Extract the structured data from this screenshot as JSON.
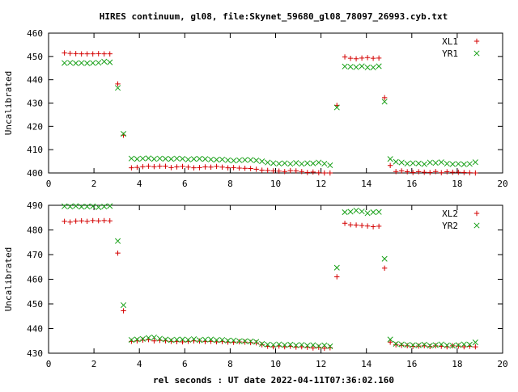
{
  "title": "HIRES continuum, gl08, file:Skynet_59680_gl08_78097_26993.cyb.txt",
  "xlabel": "rel seconds : UT date 2022-04-11T07:36:02.160",
  "colors": {
    "plus": "#d40000",
    "cross": "#18a018"
  },
  "chart_data": [
    {
      "type": "scatter",
      "ylabel": "Uncalibrated",
      "xlim": [
        0,
        20
      ],
      "ylim": [
        400,
        460
      ],
      "xticks": [
        0,
        2,
        4,
        6,
        8,
        10,
        12,
        14,
        16,
        18,
        20
      ],
      "yticks": [
        400,
        410,
        420,
        430,
        440,
        450,
        460
      ],
      "legend": "top-right",
      "series": [
        {
          "name": "XL1",
          "marker": "plus",
          "x": [
            0.7,
            0.95,
            1.2,
            1.45,
            1.7,
            1.95,
            2.2,
            2.45,
            2.7,
            3.05,
            3.3,
            3.65,
            3.9,
            4.15,
            4.4,
            4.65,
            4.9,
            5.15,
            5.4,
            5.65,
            5.9,
            6.15,
            6.4,
            6.65,
            6.9,
            7.15,
            7.4,
            7.65,
            7.9,
            8.15,
            8.4,
            8.65,
            8.9,
            9.15,
            9.4,
            9.65,
            9.9,
            10.15,
            10.4,
            10.65,
            10.9,
            11.15,
            11.4,
            11.65,
            11.9,
            12.15,
            12.4,
            12.7,
            13.05,
            13.3,
            13.55,
            13.8,
            14.05,
            14.3,
            14.55,
            14.8,
            15.05,
            15.3,
            15.55,
            15.8,
            16.05,
            16.3,
            16.55,
            16.8,
            17.05,
            17.3,
            17.55,
            17.8,
            18.05,
            18.3,
            18.55,
            18.8
          ],
          "y": [
            451.5,
            451.3,
            451.2,
            451.1,
            451.1,
            451.1,
            451.2,
            451.1,
            451.1,
            438.2,
            416.2,
            402.2,
            402.4,
            402.7,
            402.9,
            402.7,
            402.9,
            402.9,
            402.3,
            402.6,
            402.8,
            402.5,
            402.2,
            402.3,
            402.6,
            402.5,
            402.8,
            402.5,
            402.2,
            402.3,
            402.1,
            402.0,
            401.9,
            401.6,
            401.2,
            401.1,
            400.9,
            400.8,
            400.6,
            401.0,
            400.9,
            400.6,
            400.2,
            400.4,
            400.1,
            400.0,
            400.0,
            429.0,
            449.8,
            449.2,
            449.0,
            449.3,
            449.5,
            449.2,
            449.3,
            432.3,
            403.2,
            400.6,
            400.9,
            400.5,
            400.2,
            400.5,
            400.3,
            400.2,
            400.6,
            400.1,
            400.5,
            400.3,
            400.3,
            400.2,
            400.1,
            400.0
          ]
        },
        {
          "name": "YR1",
          "marker": "cross",
          "x": [
            0.7,
            0.95,
            1.2,
            1.45,
            1.7,
            1.95,
            2.2,
            2.45,
            2.7,
            3.05,
            3.3,
            3.65,
            3.9,
            4.15,
            4.4,
            4.65,
            4.9,
            5.15,
            5.4,
            5.65,
            5.9,
            6.15,
            6.4,
            6.65,
            6.9,
            7.15,
            7.4,
            7.65,
            7.9,
            8.15,
            8.4,
            8.65,
            8.9,
            9.15,
            9.4,
            9.65,
            9.9,
            10.15,
            10.4,
            10.65,
            10.9,
            11.15,
            11.4,
            11.65,
            11.9,
            12.15,
            12.4,
            12.7,
            13.05,
            13.3,
            13.55,
            13.8,
            14.05,
            14.3,
            14.55,
            14.8,
            15.05,
            15.3,
            15.55,
            15.8,
            16.05,
            16.3,
            16.55,
            16.8,
            17.05,
            17.3,
            17.55,
            17.8,
            18.05,
            18.3,
            18.55,
            18.8
          ],
          "y": [
            447.2,
            447.3,
            447.1,
            447.2,
            447.1,
            447.2,
            447.3,
            447.8,
            447.5,
            436.5,
            416.8,
            406.2,
            406.0,
            406.2,
            406.3,
            406.0,
            406.2,
            406.1,
            406.0,
            406.2,
            406.1,
            405.8,
            406.0,
            406.1,
            406.0,
            405.8,
            405.7,
            405.8,
            405.5,
            405.3,
            405.5,
            405.6,
            405.6,
            405.4,
            405.0,
            404.5,
            404.2,
            404.0,
            404.2,
            403.9,
            404.3,
            403.9,
            404.2,
            404.1,
            404.5,
            404.0,
            403.3,
            428.1,
            445.7,
            445.6,
            445.4,
            445.8,
            445.3,
            445.3,
            445.8,
            430.6,
            406.0,
            404.8,
            404.5,
            404.0,
            404.2,
            404.1,
            403.8,
            404.5,
            404.3,
            404.6,
            404.0,
            403.8,
            403.9,
            403.7,
            403.9,
            404.6
          ]
        }
      ]
    },
    {
      "type": "scatter",
      "ylabel": "Uncalibrated",
      "xlim": [
        0,
        20
      ],
      "ylim": [
        430,
        490
      ],
      "xticks": [
        0,
        2,
        4,
        6,
        8,
        10,
        12,
        14,
        16,
        18,
        20
      ],
      "yticks": [
        430,
        440,
        450,
        460,
        470,
        480,
        490
      ],
      "legend": "top-right",
      "series": [
        {
          "name": "XL2",
          "marker": "plus",
          "x": [
            0.7,
            0.95,
            1.2,
            1.45,
            1.7,
            1.95,
            2.2,
            2.45,
            2.7,
            3.05,
            3.3,
            3.65,
            3.9,
            4.15,
            4.4,
            4.65,
            4.9,
            5.15,
            5.4,
            5.65,
            5.9,
            6.15,
            6.4,
            6.65,
            6.9,
            7.15,
            7.4,
            7.65,
            7.9,
            8.15,
            8.4,
            8.65,
            8.9,
            9.15,
            9.4,
            9.65,
            9.9,
            10.15,
            10.4,
            10.65,
            10.9,
            11.15,
            11.4,
            11.65,
            11.9,
            12.15,
            12.4,
            12.7,
            13.05,
            13.3,
            13.55,
            13.8,
            14.05,
            14.3,
            14.55,
            14.8,
            15.05,
            15.3,
            15.55,
            15.8,
            16.05,
            16.3,
            16.55,
            16.8,
            17.05,
            17.3,
            17.55,
            17.8,
            18.05,
            18.3,
            18.55,
            18.8
          ],
          "y": [
            483.5,
            483.2,
            483.6,
            483.7,
            483.5,
            483.8,
            483.7,
            483.8,
            483.7,
            470.6,
            447.2,
            434.8,
            435.0,
            435.3,
            435.5,
            435.0,
            435.2,
            435.0,
            434.8,
            434.7,
            434.6,
            434.8,
            435.0,
            434.9,
            434.7,
            434.8,
            434.6,
            434.7,
            434.5,
            434.4,
            434.6,
            434.5,
            434.3,
            434.2,
            433.4,
            432.8,
            432.6,
            432.9,
            432.6,
            432.8,
            432.5,
            432.6,
            432.4,
            432.1,
            432.4,
            432.0,
            432.2,
            461.0,
            482.7,
            482.1,
            482.0,
            481.8,
            481.6,
            481.3,
            481.5,
            464.5,
            434.5,
            433.4,
            433.2,
            433.0,
            432.8,
            432.9,
            433.0,
            432.7,
            433.0,
            432.8,
            432.6,
            433.0,
            432.9,
            432.6,
            432.8,
            432.6
          ]
        },
        {
          "name": "YR2",
          "marker": "cross",
          "x": [
            0.7,
            0.95,
            1.2,
            1.45,
            1.7,
            1.95,
            2.2,
            2.45,
            2.7,
            3.05,
            3.3,
            3.65,
            3.9,
            4.15,
            4.4,
            4.65,
            4.9,
            5.15,
            5.4,
            5.65,
            5.9,
            6.15,
            6.4,
            6.65,
            6.9,
            7.15,
            7.4,
            7.65,
            7.9,
            8.15,
            8.4,
            8.65,
            8.9,
            9.15,
            9.4,
            9.65,
            9.9,
            10.15,
            10.4,
            10.65,
            10.9,
            11.15,
            11.4,
            11.65,
            11.9,
            12.15,
            12.4,
            12.7,
            13.05,
            13.3,
            13.55,
            13.8,
            14.05,
            14.3,
            14.55,
            14.8,
            15.05,
            15.3,
            15.55,
            15.8,
            16.05,
            16.3,
            16.55,
            16.8,
            17.05,
            17.3,
            17.55,
            17.8,
            18.05,
            18.3,
            18.55,
            18.8
          ],
          "y": [
            489.6,
            489.5,
            489.7,
            489.4,
            489.5,
            489.6,
            489.2,
            489.5,
            489.7,
            475.5,
            449.5,
            435.4,
            435.6,
            435.8,
            436.2,
            436.4,
            435.9,
            435.6,
            435.3,
            435.5,
            435.6,
            435.4,
            435.7,
            435.3,
            435.5,
            435.6,
            435.3,
            435.4,
            435.1,
            435.2,
            434.9,
            434.9,
            434.8,
            434.6,
            433.8,
            433.5,
            433.4,
            433.6,
            433.3,
            433.5,
            433.2,
            433.4,
            433.1,
            433.3,
            432.9,
            433.2,
            432.8,
            464.7,
            487.2,
            487.4,
            487.9,
            487.5,
            486.8,
            487.2,
            487.3,
            468.3,
            435.6,
            433.8,
            433.6,
            433.4,
            433.3,
            433.2,
            433.5,
            433.1,
            433.3,
            433.6,
            433.2,
            433.0,
            433.3,
            433.6,
            433.5,
            434.4
          ]
        }
      ]
    }
  ]
}
